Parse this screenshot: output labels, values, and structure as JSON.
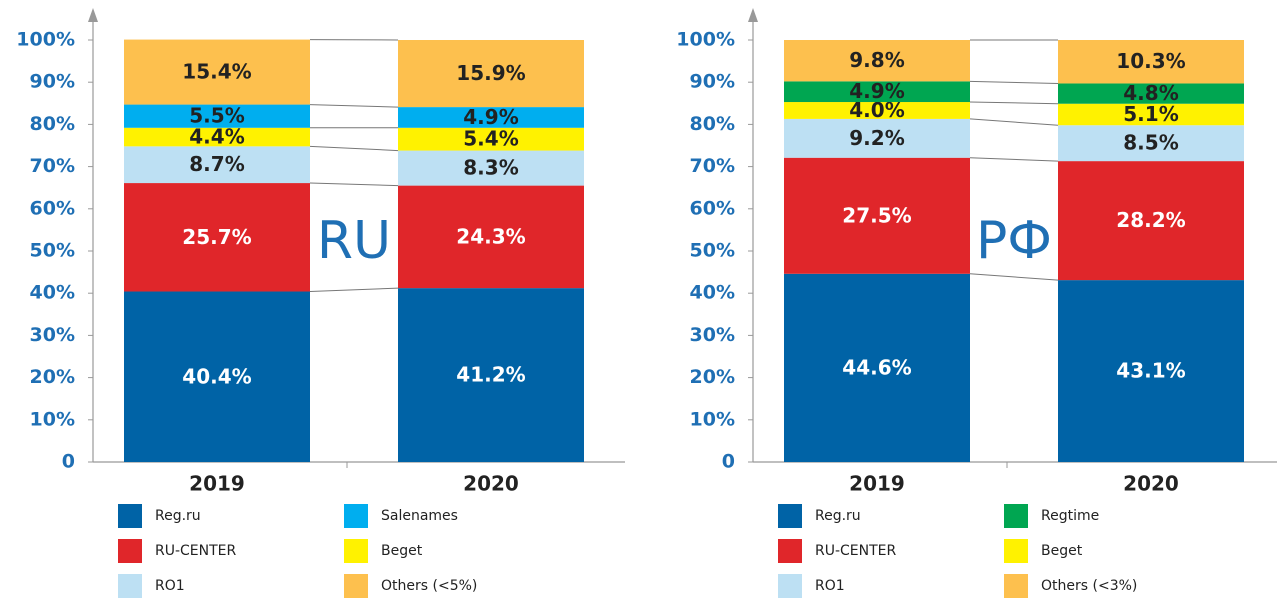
{
  "chart_data": [
    {
      "type": "stacked_bar",
      "annotation": "RU",
      "categories": [
        "2019",
        "2020"
      ],
      "ylim": [
        0,
        100
      ],
      "yticks": [
        0,
        {
          "value": 10,
          "label": "10%"
        },
        {
          "value": 20,
          "label": "20%"
        },
        {
          "value": 30,
          "label": "30%"
        },
        {
          "value": 40,
          "label": "40%"
        },
        {
          "value": 50,
          "label": "50%"
        },
        {
          "value": 60,
          "label": "60%"
        },
        {
          "value": 70,
          "label": "70%"
        },
        {
          "value": 80,
          "label": "80%"
        },
        {
          "value": 90,
          "label": "90%"
        },
        {
          "value": 100,
          "label": "100%"
        }
      ],
      "series": [
        {
          "name": "Reg.ru",
          "color": "#0063a6",
          "label_color": "#ffffff",
          "values": [
            40.4,
            41.2
          ],
          "value_labels": [
            "40.4%",
            "41.2%"
          ]
        },
        {
          "name": "RU-CENTER",
          "color": "#e0262a",
          "label_color": "#ffffff",
          "values": [
            25.7,
            24.3
          ],
          "value_labels": [
            "25.7%",
            "24.3%"
          ]
        },
        {
          "name": "RO1",
          "color": "#bde0f3",
          "label_color": "#222222",
          "values": [
            8.7,
            8.3
          ],
          "value_labels": [
            "8.7%",
            "8.3%"
          ]
        },
        {
          "name": "Beget",
          "color": "#fff200",
          "label_color": "#222222",
          "values": [
            4.4,
            5.4
          ],
          "value_labels": [
            "4.4%",
            "5.4%"
          ]
        },
        {
          "name": "Salenames",
          "color": "#00aeef",
          "label_color": "#222222",
          "values": [
            5.5,
            4.9
          ],
          "value_labels": [
            "5.5%",
            "4.9%"
          ]
        },
        {
          "name": "Others (<5%)",
          "color": "#fdc04e",
          "label_color": "#222222",
          "values": [
            15.4,
            15.9
          ],
          "value_labels": [
            "15.4%",
            "15.9%"
          ]
        }
      ]
    },
    {
      "type": "stacked_bar",
      "annotation": "РФ",
      "categories": [
        "2019",
        "2020"
      ],
      "ylim": [
        0,
        100
      ],
      "yticks": [
        0,
        {
          "value": 10,
          "label": "10%"
        },
        {
          "value": 20,
          "label": "20%"
        },
        {
          "value": 30,
          "label": "30%"
        },
        {
          "value": 40,
          "label": "40%"
        },
        {
          "value": 50,
          "label": "50%"
        },
        {
          "value": 60,
          "label": "60%"
        },
        {
          "value": 70,
          "label": "70%"
        },
        {
          "value": 80,
          "label": "80%"
        },
        {
          "value": 90,
          "label": "90%"
        },
        {
          "value": 100,
          "label": "100%"
        }
      ],
      "series": [
        {
          "name": "Reg.ru",
          "color": "#0063a6",
          "label_color": "#ffffff",
          "values": [
            44.6,
            43.1
          ],
          "value_labels": [
            "44.6%",
            "43.1%"
          ]
        },
        {
          "name": "RU-CENTER",
          "color": "#e0262a",
          "label_color": "#ffffff",
          "values": [
            27.5,
            28.2
          ],
          "value_labels": [
            "27.5%",
            "28.2%"
          ]
        },
        {
          "name": "RO1",
          "color": "#bde0f3",
          "label_color": "#222222",
          "values": [
            9.2,
            8.5
          ],
          "value_labels": [
            "9.2%",
            "8.5%"
          ]
        },
        {
          "name": "Beget",
          "color": "#fff200",
          "label_color": "#222222",
          "values": [
            4.0,
            5.1
          ],
          "value_labels": [
            "4.0%",
            "5.1%"
          ]
        },
        {
          "name": "Regtime",
          "color": "#00a651",
          "label_color": "#222222",
          "values": [
            4.9,
            4.8
          ],
          "value_labels": [
            "4.9%",
            "4.8%"
          ]
        },
        {
          "name": "Others (<3%)",
          "color": "#fdc04e",
          "label_color": "#222222",
          "values": [
            9.8,
            10.3
          ],
          "value_labels": [
            "9.8%",
            "10.3%"
          ]
        }
      ]
    }
  ]
}
